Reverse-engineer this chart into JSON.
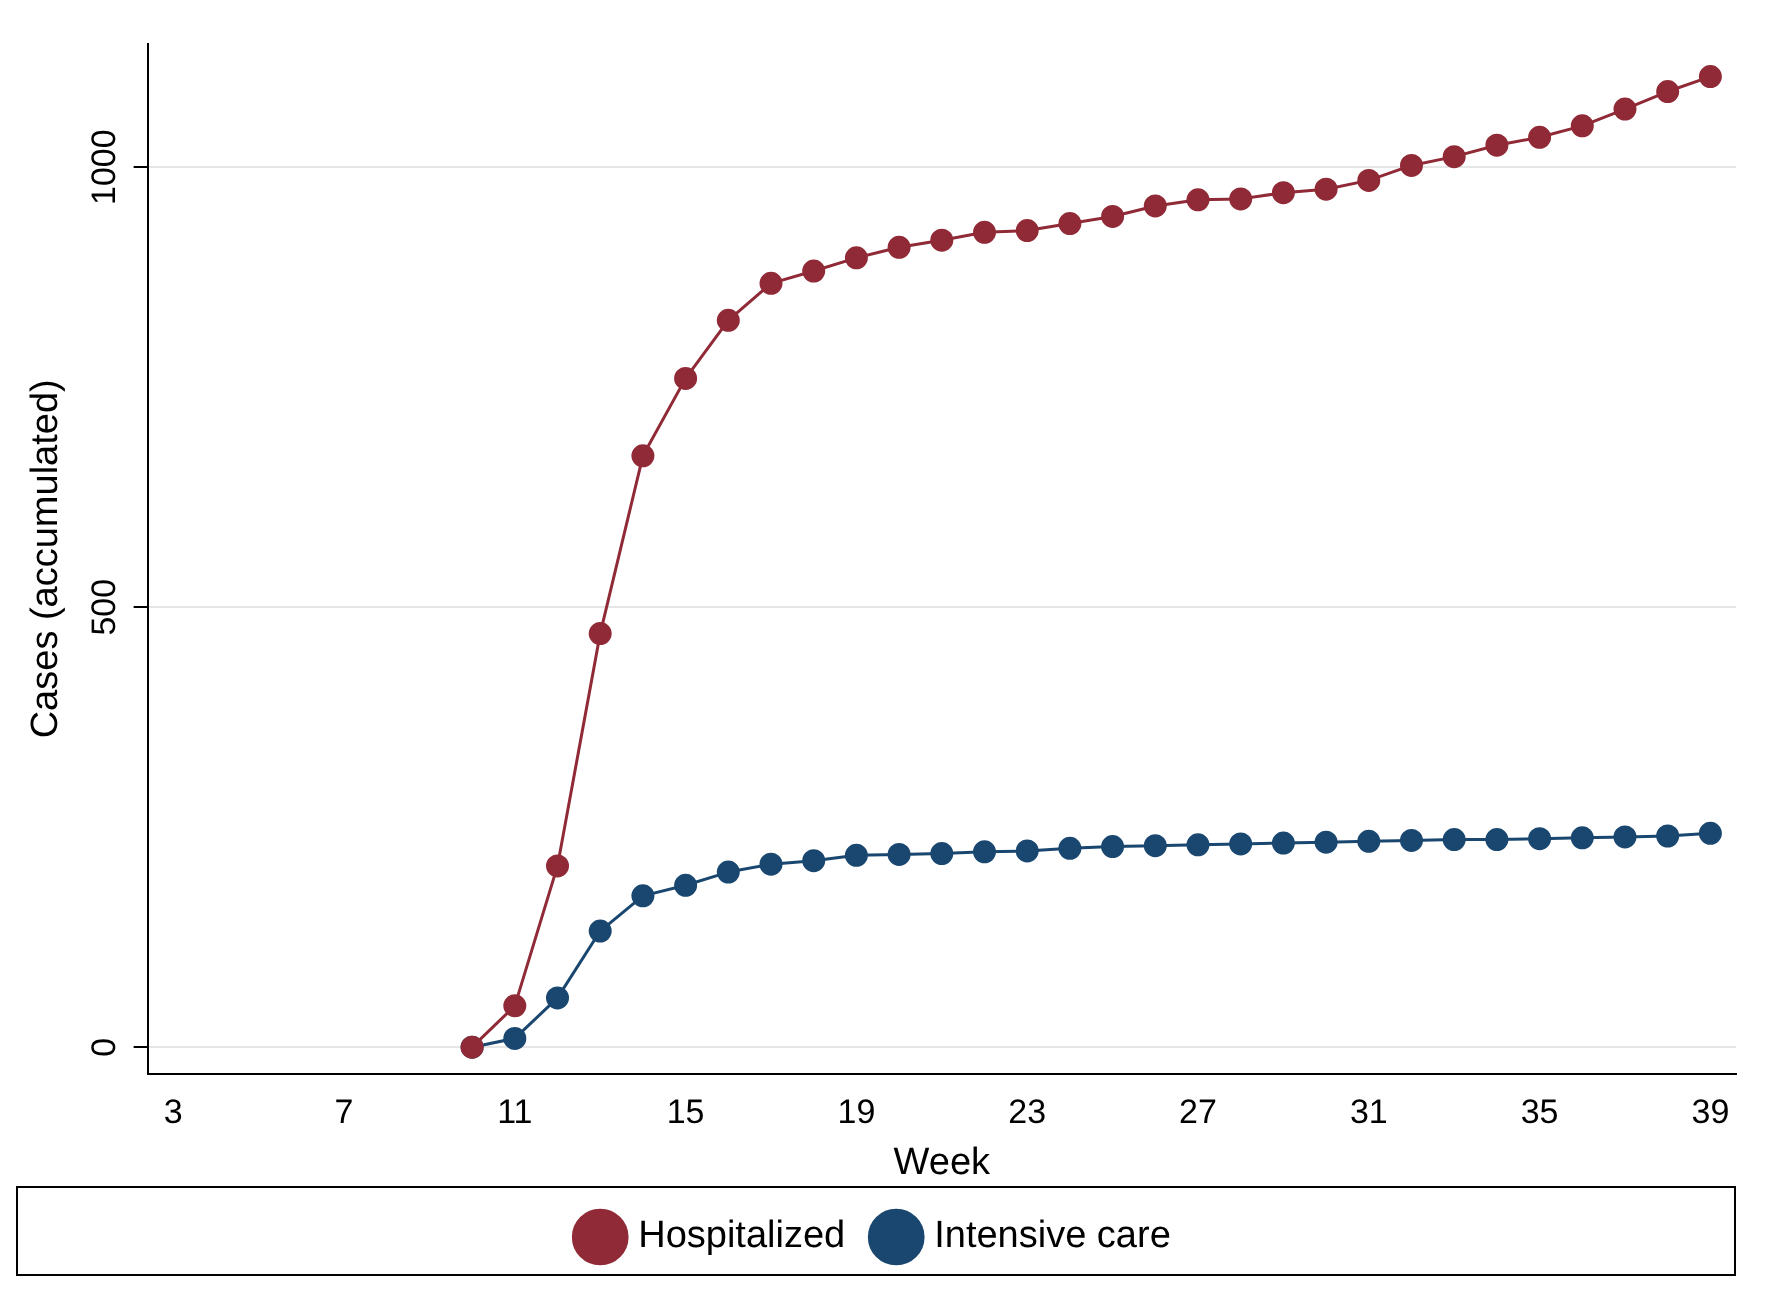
{
  "chart_data": {
    "type": "line",
    "xlabel": "Week",
    "ylabel": "Cases (accumulated)",
    "x": [
      10,
      11,
      12,
      13,
      14,
      15,
      16,
      17,
      18,
      19,
      20,
      21,
      22,
      23,
      24,
      25,
      26,
      27,
      28,
      29,
      30,
      31,
      32,
      33,
      34,
      35,
      36,
      37,
      38,
      39
    ],
    "series": [
      {
        "name": "Hospitalized",
        "color": "#902a36",
        "values": [
          0,
          47,
          206,
          470,
          672,
          760,
          826,
          868,
          882,
          897,
          909,
          917,
          926,
          928,
          936,
          944,
          956,
          963,
          964,
          971,
          975,
          985,
          1002,
          1012,
          1025,
          1034,
          1047,
          1066,
          1086,
          1103
        ]
      },
      {
        "name": "Intensive care",
        "color": "#1a476f",
        "values": [
          0,
          10,
          56,
          132,
          172,
          184,
          199,
          208,
          212,
          218,
          219,
          220,
          222,
          223,
          226,
          228,
          229,
          230,
          231,
          232,
          233,
          234,
          235,
          236,
          236,
          237,
          238,
          239,
          240,
          243
        ]
      }
    ],
    "xlim": [
      2.4,
      39.6
    ],
    "xticks": [
      3,
      7,
      11,
      15,
      19,
      23,
      27,
      31,
      35,
      39
    ],
    "ylim": [
      -30,
      1140
    ],
    "yticks": [
      0,
      500,
      1000
    ],
    "grid": "y",
    "legend": "bottom",
    "marker": "circle",
    "line_style": "solid"
  }
}
